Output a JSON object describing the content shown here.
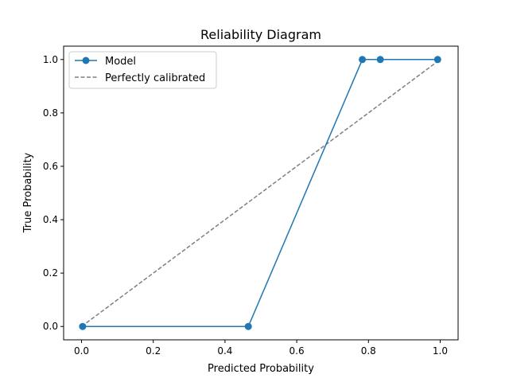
{
  "chart_data": {
    "type": "line",
    "title": "Reliability Diagram",
    "xlabel": "Predicted Probability",
    "ylabel": "True Probability",
    "xlim": [
      -0.05,
      1.05
    ],
    "ylim": [
      -0.05,
      1.05
    ],
    "xticks": [
      0.0,
      0.2,
      0.4,
      0.6,
      0.8,
      1.0
    ],
    "yticks": [
      0.0,
      0.2,
      0.4,
      0.6,
      0.8,
      1.0
    ],
    "xtick_labels": [
      "0.0",
      "0.2",
      "0.4",
      "0.6",
      "0.8",
      "1.0"
    ],
    "ytick_labels": [
      "0.0",
      "0.2",
      "0.4",
      "0.6",
      "0.8",
      "1.0"
    ],
    "grid": false,
    "legend_position": "top-left",
    "series": [
      {
        "name": "Model",
        "style": "solid-with-circle-markers",
        "color": "#1f77b4",
        "x": [
          0.003,
          0.465,
          0.783,
          0.833,
          0.993
        ],
        "y": [
          0.0,
          0.0,
          1.0,
          1.0,
          1.0
        ]
      },
      {
        "name": "Perfectly calibrated",
        "style": "dashed",
        "color": "#7f7f7f",
        "x": [
          0.0,
          1.0
        ],
        "y": [
          0.0,
          1.0
        ]
      }
    ]
  }
}
